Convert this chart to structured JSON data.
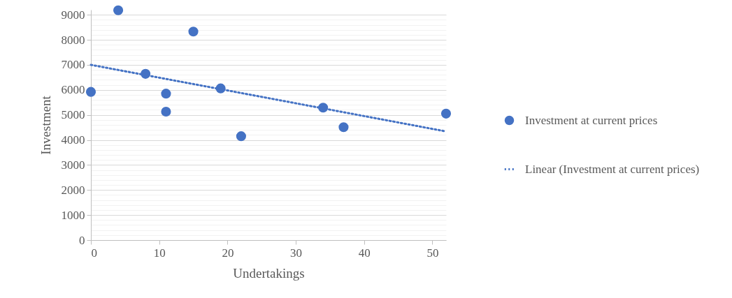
{
  "chart_data": {
    "type": "scatter",
    "xlabel": "Undertakings",
    "ylabel": "Investment",
    "xlim": [
      0,
      52
    ],
    "xticks": [
      0,
      10,
      20,
      30,
      40,
      50
    ],
    "ylim": [
      0,
      9200
    ],
    "yticks": [
      0,
      {
        "value": 200,
        "label": null
      },
      {
        "value": 400,
        "label": null
      },
      {
        "value": 600,
        "label": null
      },
      {
        "value": 800,
        "label": null
      },
      1000,
      {
        "value": 1200,
        "label": null
      },
      {
        "value": 1400,
        "label": null
      },
      {
        "value": 1600,
        "label": null
      },
      {
        "value": 1800,
        "label": null
      },
      2000,
      {
        "value": 2200,
        "label": null
      },
      {
        "value": 2400,
        "label": null
      },
      {
        "value": 2600,
        "label": null
      },
      {
        "value": 2800,
        "label": null
      },
      3000,
      {
        "value": 3200,
        "label": null
      },
      {
        "value": 3400,
        "label": null
      },
      {
        "value": 3600,
        "label": null
      },
      {
        "value": 3800,
        "label": null
      },
      4000,
      {
        "value": 4200,
        "label": null
      },
      {
        "value": 4400,
        "label": null
      },
      {
        "value": 4600,
        "label": null
      },
      {
        "value": 4800,
        "label": null
      },
      5000,
      {
        "value": 5200,
        "label": null
      },
      {
        "value": 5400,
        "label": null
      },
      {
        "value": 5600,
        "label": null
      },
      {
        "value": 5800,
        "label": null
      },
      6000,
      {
        "value": 6200,
        "label": null
      },
      {
        "value": 6400,
        "label": null
      },
      {
        "value": 6600,
        "label": null
      },
      {
        "value": 6800,
        "label": null
      },
      7000,
      {
        "value": 7200,
        "label": null
      },
      {
        "value": 7400,
        "label": null
      },
      {
        "value": 7600,
        "label": null
      },
      {
        "value": 7800,
        "label": null
      },
      8000,
      {
        "value": 8200,
        "label": null
      },
      {
        "value": 8400,
        "label": null
      },
      {
        "value": 8600,
        "label": null
      },
      {
        "value": 8800,
        "label": null
      },
      9000
    ],
    "grid": "y",
    "legend": "right",
    "series": [
      {
        "name": "Investment at current prices",
        "marker": "circle",
        "color": "#4472c4",
        "x": [
          0,
          4,
          8,
          11,
          11,
          15,
          19,
          22,
          34,
          37,
          52
        ],
        "values": [
          5920,
          9180,
          6640,
          5850,
          5130,
          8330,
          6060,
          4150,
          5290,
          4510,
          5050
        ]
      },
      {
        "name": "Linear (Investment at current prices)",
        "type": "line",
        "line_style": "dotted",
        "color": "#4472c4",
        "x": [
          0,
          52
        ],
        "values": [
          7000,
          4340
        ]
      }
    ]
  }
}
